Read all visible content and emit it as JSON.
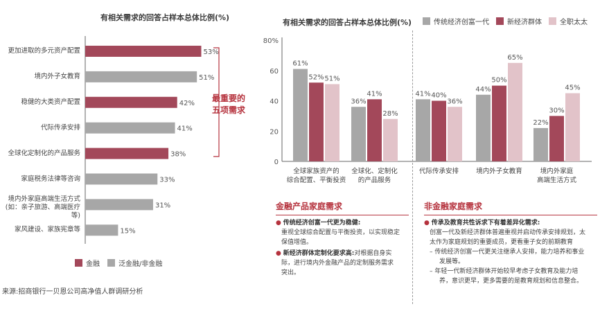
{
  "colors": {
    "finance": "#a3485a",
    "non_finance": "#a7a7a7",
    "gen1": "#a7a7a7",
    "newgen": "#a3485a",
    "housewife": "#e2c3c9",
    "accent_red": "#b5323d"
  },
  "left_chart": {
    "title": "有相关需求的回答占样本总体比例(%)",
    "annotation_line1": "最重要的",
    "annotation_line2": "五项需求",
    "legend": {
      "finance": "金融",
      "non_finance": "泛金融/非金融"
    }
  },
  "right_chart": {
    "title": "有相关需求的回答占样本总体比例(%)",
    "legend": {
      "gen1": "传统经济创富一代",
      "newgen": "新经济群体",
      "housewife": "全职太太"
    }
  },
  "finance_section": {
    "title": "金融产品家庭需求",
    "b1_head": "传统经济创富一代更为稳健:",
    "b1_l1": "重视全球综合配置与平衡投资，以实现稳定",
    "b1_l2": "保值增值。",
    "b2_head": "新经济群体定制化要求高:",
    "b2_tail": "对根据自身实",
    "b2_l2": "际，进行境内外金融产品的定制服务需求",
    "b2_l3": "突出。"
  },
  "nonfinance_section": {
    "title": "非金融家庭需求",
    "head": "传承及教育共性诉求下有着差异化需求:",
    "p1": "创富一代及新经济群体普遍重视并启动传承安排规划，太",
    "p2": "太作为家庭规划的重要成员，更看重子女的前期教育",
    "d1a": "–  传统经济创富一代更关注继承人安排，能力培养和事业",
    "d1b": "发展等。",
    "d2a": "–  年轻一代新经济群体开始较早考虑子女教育及能力培",
    "d2b": "养，意识更早，更多需要的是教育规划和信息整合。"
  },
  "source": "来源:招商银行一贝恩公司高净值人群调研分析",
  "chart_data": [
    {
      "type": "bar",
      "orientation": "horizontal",
      "title": "有相关需求的回答占样本总体比例(%)",
      "categories": [
        "更加进取的多元资产配置",
        "境内外子女教育",
        "稳健的大类资产配置",
        "代际传承安排",
        "全球化定制化的产品服务",
        "家庭税务法律等咨询",
        "境内外家庭高端生活方式",
        "家风建设、家族宪章等"
      ],
      "category_sublabels": [
        "",
        "",
        "",
        "",
        "",
        "",
        "(如：亲子旅游、高端医疗等)",
        ""
      ],
      "values": [
        53,
        51,
        42,
        41,
        38,
        33,
        31,
        15
      ],
      "value_labels": [
        "53%",
        "51%",
        "42%",
        "41%",
        "38%",
        "33%",
        "31%",
        "15%"
      ],
      "groups": [
        "金融",
        "泛金融/非金融",
        "金融",
        "泛金融/非金融",
        "金融",
        "泛金融/非金融",
        "泛金融/非金融",
        "泛金融/非金融"
      ],
      "xlim": [
        0,
        60
      ],
      "legend": [
        "金融",
        "泛金融/非金融"
      ],
      "legend_position": "bottom-left"
    },
    {
      "type": "bar",
      "title": "有相关需求的回答占样本总体比例(%)",
      "categories": [
        [
          "全球家族资产的",
          "综合配置、平衡投资"
        ],
        [
          "全球化、定制化",
          "的产品服务"
        ],
        [
          "代际传承安排"
        ],
        [
          "境内外子女教育"
        ],
        [
          "境内外家庭",
          "高端生活方式"
        ]
      ],
      "series": [
        {
          "name": "传统经济创富一代",
          "values": [
            61,
            36,
            41,
            44,
            22
          ]
        },
        {
          "name": "新经济群体",
          "values": [
            52,
            41,
            40,
            50,
            30
          ]
        },
        {
          "name": "全职太太",
          "values": [
            51,
            28,
            36,
            65,
            45
          ]
        }
      ],
      "ylim": [
        0,
        80
      ],
      "yticks": [
        "0",
        "20",
        "40",
        "60",
        "80%"
      ],
      "legend_position": "top",
      "grid": false
    }
  ]
}
